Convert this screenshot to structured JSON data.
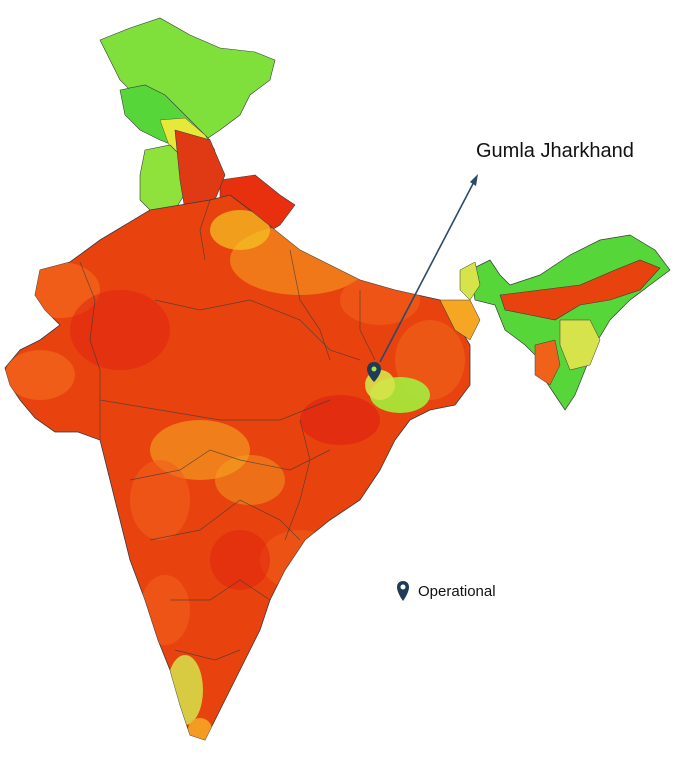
{
  "map": {
    "callout": {
      "label": "Gumla Jharkhand"
    },
    "legend": {
      "marker_label": "Operational",
      "marker_icon": "location-pin-icon"
    },
    "colors": {
      "marker": "#1f3b57",
      "pointer_line": "#2e4a66",
      "high": "#e8300f",
      "mid_high": "#f0611a",
      "mid": "#f5a623",
      "low_mid": "#d6e34a",
      "low": "#57d63a",
      "border": "#3a3a3a"
    }
  }
}
